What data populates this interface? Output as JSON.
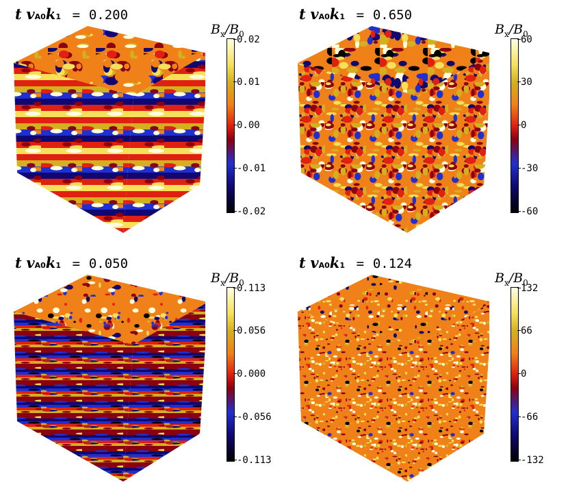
{
  "panels": [
    {
      "time_label": {
        "prefix": "t",
        "v": "v",
        "v_sub": "A0",
        "k": "k",
        "k_sub": "1",
        "equals": "=",
        "value": "0.200"
      },
      "colorbar": {
        "title": "B",
        "title_sub": "x",
        "slash": "/B",
        "denom_sub": "0",
        "ticks": [
          "0.02",
          "0.01",
          "0.00",
          "-0.01",
          "-0.02"
        ]
      },
      "texture": {
        "top_seed": 11,
        "side_style": "stripes",
        "stripe_period": 9,
        "dark_fraction": 0.3
      }
    },
    {
      "time_label": {
        "prefix": "t",
        "v": "v",
        "v_sub": "A0",
        "k": "k",
        "k_sub": "1",
        "equals": "=",
        "value": "0.650"
      },
      "colorbar": {
        "title": "B",
        "title_sub": "x",
        "slash": "/B",
        "denom_sub": "0",
        "ticks": [
          "60",
          "30",
          "0",
          "-30",
          "-60"
        ]
      },
      "texture": {
        "top_seed": 23,
        "side_style": "swirl",
        "stripe_period": 0,
        "dark_fraction": 0.25
      }
    },
    {
      "time_label": {
        "prefix": "t",
        "v": "v",
        "v_sub": "A0",
        "k": "k",
        "k_sub": "1",
        "equals": "=",
        "value": "0.050"
      },
      "colorbar": {
        "title": "B",
        "title_sub": "x",
        "slash": "/B",
        "denom_sub": "0",
        "ticks": [
          "0.113",
          "0.056",
          "0.000",
          "-0.056",
          "-0.113"
        ]
      },
      "texture": {
        "top_seed": 37,
        "side_style": "fine-stripes",
        "stripe_period": 4,
        "dark_fraction": 0.35
      }
    },
    {
      "time_label": {
        "prefix": "t",
        "v": "v",
        "v_sub": "A0",
        "k": "k",
        "k_sub": "1",
        "equals": "=",
        "value": "0.124"
      },
      "colorbar": {
        "title": "B",
        "title_sub": "x",
        "slash": "/B",
        "denom_sub": "0",
        "ticks": [
          "132",
          "66",
          "0",
          "-66",
          "-132"
        ]
      },
      "texture": {
        "top_seed": 53,
        "side_style": "noise",
        "stripe_period": 0,
        "dark_fraction": 0.12
      }
    }
  ],
  "colormap": [
    "#000000",
    "#100870",
    "#2030d0",
    "#8a0010",
    "#e02010",
    "#f08018",
    "#d4b020",
    "#f6e05a",
    "#ffffe0"
  ]
}
